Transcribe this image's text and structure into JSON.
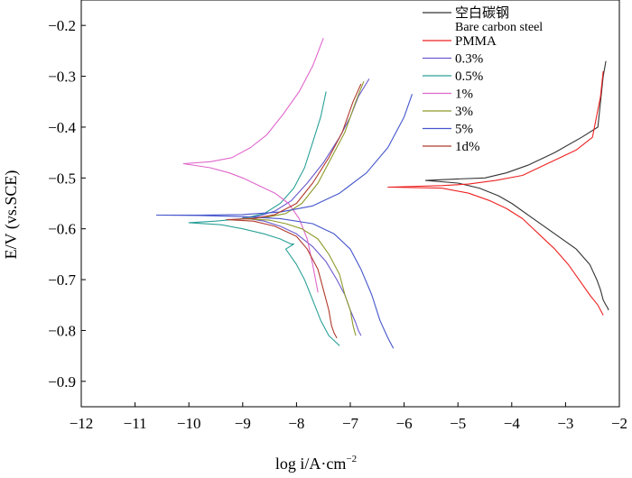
{
  "chart_data": {
    "type": "line",
    "title": "",
    "xlabel": "log i/A·cm",
    "xlabel_sup": "−2",
    "ylabel": "E/V (vs.SCE)",
    "xlim": [
      -12,
      -2
    ],
    "ylim": [
      -0.95,
      -0.15
    ],
    "x_ticks": [
      -12,
      -11,
      -10,
      -9,
      -8,
      -7,
      -6,
      -5,
      -4,
      -3,
      -2
    ],
    "x_tick_labels": [
      "−12",
      "−11",
      "−10",
      "−9",
      "−8",
      "−7",
      "−6",
      "−5",
      "−4",
      "−3",
      "−2"
    ],
    "y_ticks": [
      -0.2,
      -0.3,
      -0.4,
      -0.5,
      -0.6,
      -0.7,
      -0.8,
      -0.9
    ],
    "y_tick_labels": [
      "−0.2",
      "−0.3",
      "−0.4",
      "−0.5",
      "−0.6",
      "−0.7",
      "−0.8",
      "−0.9"
    ],
    "legend": {
      "position": "top-right",
      "entries": [
        {
          "label": "空白碳钢",
          "sublabel": "Bare carbon steel",
          "color": "#333333"
        },
        {
          "label": "PMMA",
          "color": "#ee2222"
        },
        {
          "label": "0.3%",
          "color": "#6a5acd"
        },
        {
          "label": "0.5%",
          "color": "#2aa198"
        },
        {
          "label": "1%",
          "color": "#e066cc"
        },
        {
          "label": "3%",
          "color": "#8e9a2a"
        },
        {
          "label": "5%",
          "color": "#4455cc"
        },
        {
          "label": "1d%",
          "color": "#b03a2e"
        }
      ]
    },
    "series": [
      {
        "name": "Bare carbon steel",
        "color": "#333333",
        "x": [
          -2.25,
          -2.3,
          -2.4,
          -2.7,
          -3.2,
          -3.7,
          -4.1,
          -4.5,
          -5.0,
          -5.6,
          -5.6,
          -5.0,
          -4.6,
          -4.25,
          -4.0,
          -3.6,
          -3.2,
          -2.8,
          -2.55,
          -2.42,
          -2.35,
          -2.3,
          -2.25,
          -2.22,
          -2.2
        ],
        "y": [
          -0.27,
          -0.3,
          -0.4,
          -0.42,
          -0.45,
          -0.475,
          -0.49,
          -0.5,
          -0.502,
          -0.505,
          -0.505,
          -0.51,
          -0.52,
          -0.535,
          -0.55,
          -0.58,
          -0.61,
          -0.64,
          -0.67,
          -0.7,
          -0.72,
          -0.74,
          -0.75,
          -0.755,
          -0.76
        ]
      },
      {
        "name": "PMMA",
        "color": "#ee2222",
        "x": [
          -2.3,
          -2.35,
          -2.5,
          -2.8,
          -3.3,
          -3.8,
          -4.3,
          -4.8,
          -5.3,
          -6.3,
          -6.3,
          -5.3,
          -4.8,
          -4.4,
          -4.1,
          -3.8,
          -3.5,
          -3.2,
          -2.95,
          -2.75,
          -2.55,
          -2.4,
          -2.3
        ],
        "y": [
          -0.29,
          -0.34,
          -0.42,
          -0.445,
          -0.47,
          -0.495,
          -0.505,
          -0.512,
          -0.515,
          -0.518,
          -0.518,
          -0.52,
          -0.53,
          -0.545,
          -0.56,
          -0.58,
          -0.61,
          -0.64,
          -0.67,
          -0.7,
          -0.73,
          -0.75,
          -0.77
        ]
      },
      {
        "name": "0.3%",
        "color": "#6a5acd",
        "x": [
          -6.65,
          -6.85,
          -7.0,
          -7.2,
          -7.5,
          -7.8,
          -8.1,
          -8.4,
          -8.7,
          -9.0,
          -9.0,
          -8.6,
          -8.3,
          -8.0,
          -7.7,
          -7.45,
          -7.25,
          -7.1,
          -7.0,
          -6.9,
          -6.85,
          -6.8
        ],
        "y": [
          -0.305,
          -0.34,
          -0.38,
          -0.42,
          -0.47,
          -0.51,
          -0.545,
          -0.565,
          -0.575,
          -0.578,
          -0.578,
          -0.585,
          -0.595,
          -0.61,
          -0.635,
          -0.665,
          -0.7,
          -0.73,
          -0.76,
          -0.785,
          -0.8,
          -0.81
        ]
      },
      {
        "name": "0.5%",
        "color": "#2aa198",
        "x": [
          -7.45,
          -7.55,
          -7.7,
          -7.85,
          -8.05,
          -8.3,
          -8.6,
          -9.0,
          -9.5,
          -10.0,
          -10.0,
          -9.4,
          -9.0,
          -8.6,
          -8.3,
          -8.1,
          -8.05,
          -8.2,
          -8.0,
          -7.85,
          -7.7,
          -7.55,
          -7.4,
          -7.2
        ],
        "y": [
          -0.33,
          -0.38,
          -0.43,
          -0.48,
          -0.52,
          -0.55,
          -0.57,
          -0.58,
          -0.585,
          -0.588,
          -0.588,
          -0.592,
          -0.6,
          -0.61,
          -0.62,
          -0.63,
          -0.63,
          -0.64,
          -0.67,
          -0.7,
          -0.74,
          -0.78,
          -0.81,
          -0.83
        ]
      },
      {
        "name": "1%",
        "color": "#e066cc",
        "x": [
          -7.5,
          -7.7,
          -7.95,
          -8.25,
          -8.55,
          -8.85,
          -9.2,
          -9.6,
          -10.1,
          -10.1,
          -9.6,
          -9.25,
          -9.0,
          -8.7,
          -8.4,
          -8.15,
          -7.95,
          -7.8,
          -7.7,
          -7.6
        ],
        "y": [
          -0.225,
          -0.28,
          -0.33,
          -0.375,
          -0.415,
          -0.44,
          -0.46,
          -0.468,
          -0.472,
          -0.472,
          -0.48,
          -0.49,
          -0.5,
          -0.515,
          -0.53,
          -0.55,
          -0.58,
          -0.62,
          -0.67,
          -0.725
        ]
      },
      {
        "name": "3%",
        "color": "#8e9a2a",
        "x": [
          -6.75,
          -6.9,
          -7.1,
          -7.35,
          -7.6,
          -7.9,
          -8.2,
          -8.6,
          -9.0,
          -9.0,
          -8.5,
          -8.2,
          -7.9,
          -7.6,
          -7.4,
          -7.2,
          -7.1,
          -7.0,
          -6.95,
          -6.9
        ],
        "y": [
          -0.31,
          -0.35,
          -0.41,
          -0.46,
          -0.51,
          -0.55,
          -0.57,
          -0.578,
          -0.58,
          -0.58,
          -0.583,
          -0.59,
          -0.6,
          -0.62,
          -0.65,
          -0.69,
          -0.73,
          -0.76,
          -0.79,
          -0.81
        ]
      },
      {
        "name": "5%",
        "color": "#4455cc",
        "x": [
          -5.85,
          -6.0,
          -6.3,
          -6.7,
          -7.2,
          -7.7,
          -8.3,
          -9.0,
          -9.8,
          -10.6,
          -10.6,
          -9.8,
          -9.0,
          -8.3,
          -7.7,
          -7.3,
          -7.0,
          -6.8,
          -6.6,
          -6.45,
          -6.3,
          -6.2
        ],
        "y": [
          -0.335,
          -0.38,
          -0.44,
          -0.49,
          -0.53,
          -0.555,
          -0.567,
          -0.572,
          -0.573,
          -0.573,
          -0.573,
          -0.574,
          -0.576,
          -0.58,
          -0.59,
          -0.61,
          -0.64,
          -0.68,
          -0.73,
          -0.78,
          -0.815,
          -0.835
        ]
      },
      {
        "name": "1d%",
        "color": "#b03a2e",
        "x": [
          -6.8,
          -6.95,
          -7.15,
          -7.4,
          -7.7,
          -8.0,
          -8.4,
          -8.8,
          -9.3,
          -9.3,
          -8.8,
          -8.4,
          -8.0,
          -7.8,
          -7.6,
          -7.5,
          -7.4,
          -7.35,
          -7.3,
          -7.25
        ],
        "y": [
          -0.315,
          -0.35,
          -0.41,
          -0.46,
          -0.51,
          -0.55,
          -0.572,
          -0.58,
          -0.582,
          -0.582,
          -0.585,
          -0.595,
          -0.615,
          -0.64,
          -0.68,
          -0.72,
          -0.76,
          -0.79,
          -0.805,
          -0.815
        ]
      }
    ]
  }
}
